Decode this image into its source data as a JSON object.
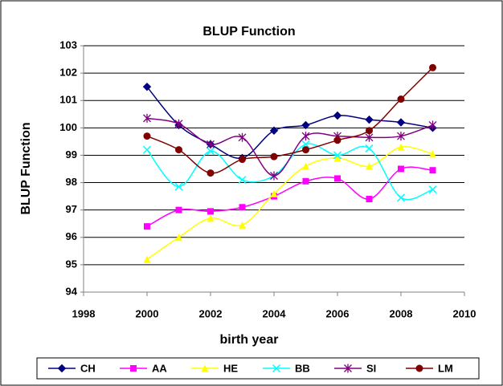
{
  "chart_data": {
    "type": "line",
    "title": "BLUP Function",
    "x_label": "birth year",
    "y_label": "BLUP Function",
    "x": [
      2000,
      2001,
      2002,
      2003,
      2004,
      2005,
      2006,
      2007,
      2008,
      2009
    ],
    "xlim": [
      1998,
      2010
    ],
    "xticks": [
      1998,
      2000,
      2002,
      2004,
      2006,
      2008,
      2010
    ],
    "ylim": [
      94,
      103
    ],
    "yticks": [
      94,
      95,
      96,
      97,
      98,
      99,
      100,
      101,
      102,
      103
    ],
    "grid": true,
    "legend": "bottom",
    "series": [
      {
        "name": "CH",
        "color": "#000080",
        "marker": "diamond",
        "values": [
          101.5,
          100.1,
          99.4,
          98.9,
          99.9,
          100.1,
          100.45,
          100.3,
          100.2,
          100.0
        ]
      },
      {
        "name": "AA",
        "color": "#ff00ff",
        "marker": "square",
        "values": [
          96.4,
          97.0,
          96.95,
          97.1,
          97.5,
          98.05,
          98.15,
          97.4,
          98.5,
          98.45
        ]
      },
      {
        "name": "HE",
        "color": "#ffff00",
        "marker": "triangle",
        "values": [
          95.2,
          96.0,
          96.7,
          96.45,
          97.6,
          98.6,
          98.9,
          98.6,
          99.3,
          99.05
        ]
      },
      {
        "name": "BB",
        "color": "#00ffff",
        "marker": "x",
        "values": [
          99.2,
          97.85,
          99.15,
          98.1,
          98.25,
          99.4,
          99.0,
          99.25,
          97.45,
          97.75
        ]
      },
      {
        "name": "SI",
        "color": "#800080",
        "marker": "star",
        "values": [
          100.35,
          100.15,
          99.4,
          99.65,
          98.25,
          99.7,
          99.7,
          99.65,
          99.7,
          100.1
        ]
      },
      {
        "name": "LM",
        "color": "#800000",
        "marker": "circle",
        "values": [
          99.7,
          99.2,
          98.35,
          98.85,
          98.95,
          99.2,
          99.55,
          99.9,
          101.05,
          102.2
        ]
      }
    ]
  }
}
